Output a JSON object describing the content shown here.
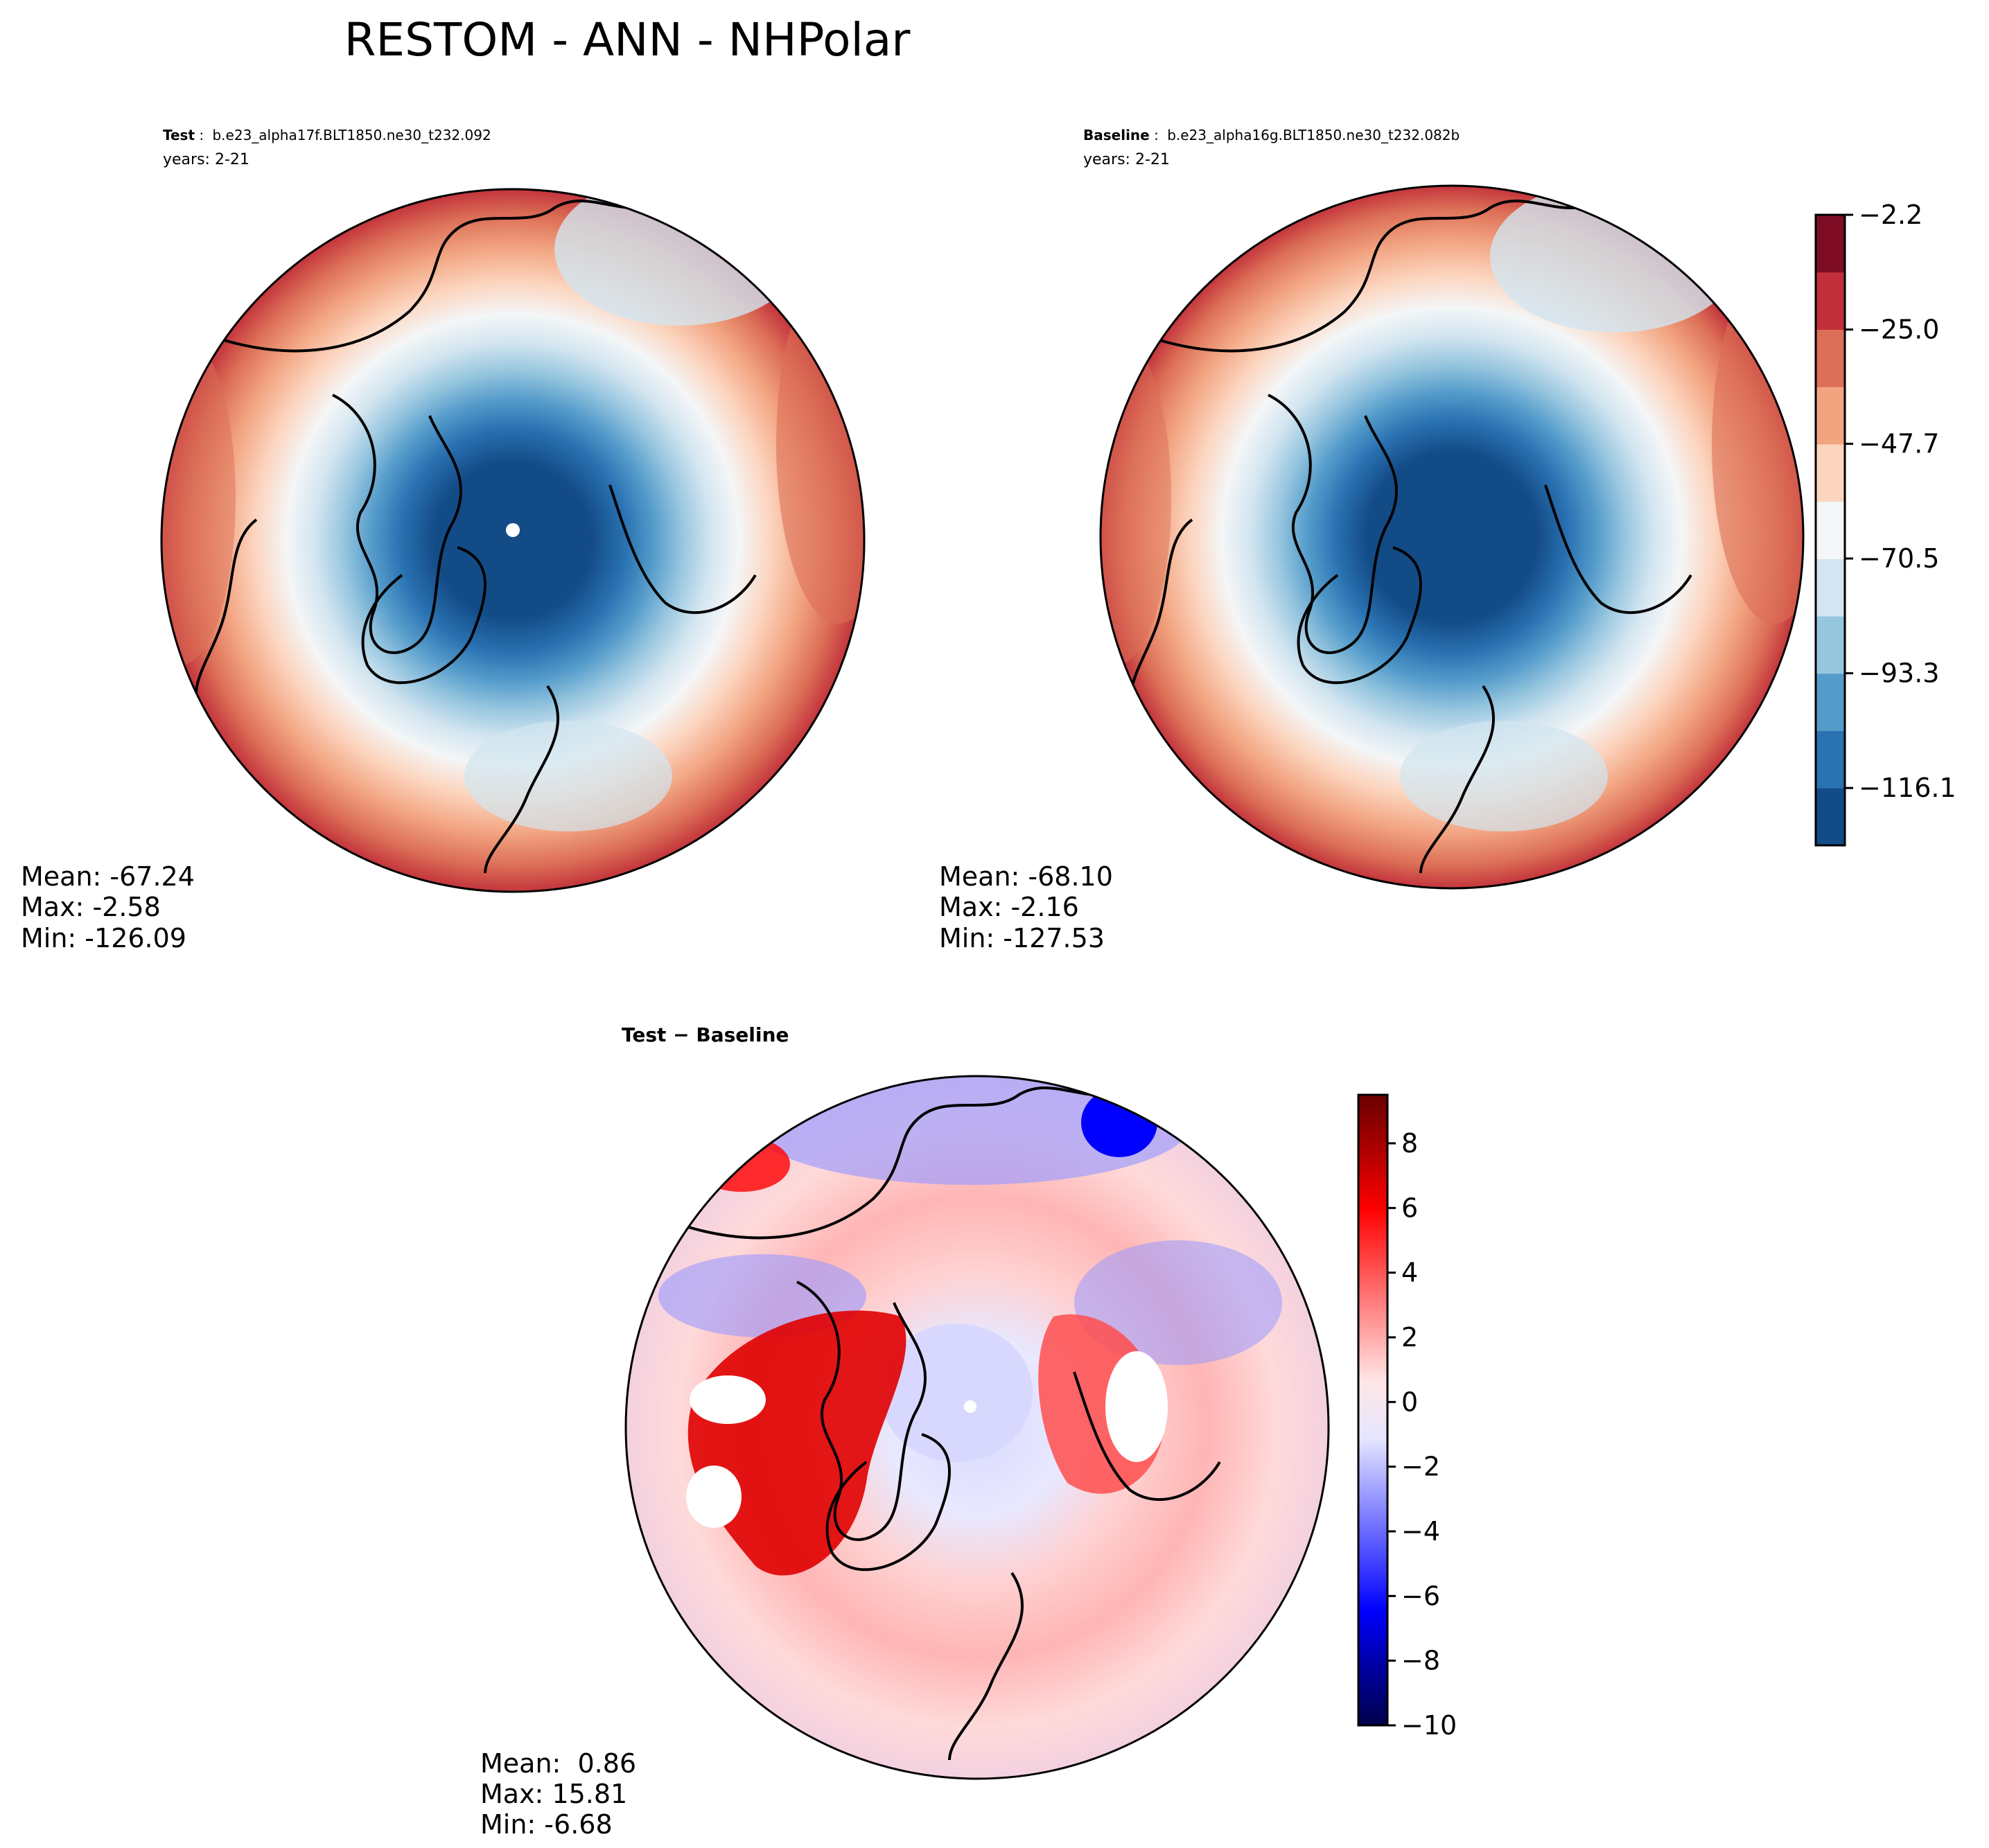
{
  "figure_title": "RESTOM - ANN - NHPolar",
  "chart_data": [
    {
      "type": "heatmap",
      "projection": "north-polar-stereographic",
      "panel": "test",
      "label_bold": "Test",
      "label_sep": ":",
      "case_name": "b.e23_alpha17f.BLT1850.ne30_t232.092",
      "years": "years: 2-21",
      "stats": {
        "mean": "Mean: -67.24",
        "max": "Max: -2.58",
        "min": "Min: -126.09"
      }
    },
    {
      "type": "heatmap",
      "projection": "north-polar-stereographic",
      "panel": "baseline",
      "label_bold": "Baseline",
      "label_sep": ":",
      "case_name": "b.e23_alpha16g.BLT1850.ne30_t232.082b",
      "years": "years: 2-21",
      "stats": {
        "mean": "Mean: -68.10",
        "max": "Max: -2.16",
        "min": "Min: -127.53"
      },
      "colorbar": {
        "ticks": [
          "−2.2",
          "−25.0",
          "−47.7",
          "−70.5",
          "−93.3",
          "−116.1"
        ],
        "tick_values": [
          -2.2,
          -25.0,
          -47.7,
          -70.5,
          -93.3,
          -116.1
        ],
        "range": [
          -127.5,
          -2.2
        ],
        "levels": 11,
        "colors": [
          "#134b87",
          "#2a72b2",
          "#559ccb",
          "#97c6df",
          "#d2e5f0",
          "#f4f6f7",
          "#fcd5bf",
          "#f2a481",
          "#dc6f57",
          "#c1303a",
          "#7e0c25"
        ]
      }
    },
    {
      "type": "heatmap",
      "projection": "north-polar-stereographic",
      "panel": "difference",
      "title": "Test − Baseline",
      "stats": {
        "mean": "Mean:  0.86",
        "max": "Max: 15.81",
        "min": "Min: -6.68"
      },
      "colorbar": {
        "ticks": [
          "8",
          "6",
          "4",
          "2",
          "0",
          "−2",
          "−4",
          "−6",
          "−8",
          "−10"
        ],
        "tick_values": [
          8,
          6,
          4,
          2,
          0,
          -2,
          -4,
          -6,
          -8,
          -10
        ],
        "range": [
          -10,
          9.5
        ],
        "colors": [
          "#00004c",
          "#0000a0",
          "#0000ff",
          "#4d4dff",
          "#9999ff",
          "#e6e6ff",
          "#ffe6e6",
          "#ff9999",
          "#ff4d4d",
          "#ff0000",
          "#b00000",
          "#6a0000"
        ]
      }
    }
  ]
}
